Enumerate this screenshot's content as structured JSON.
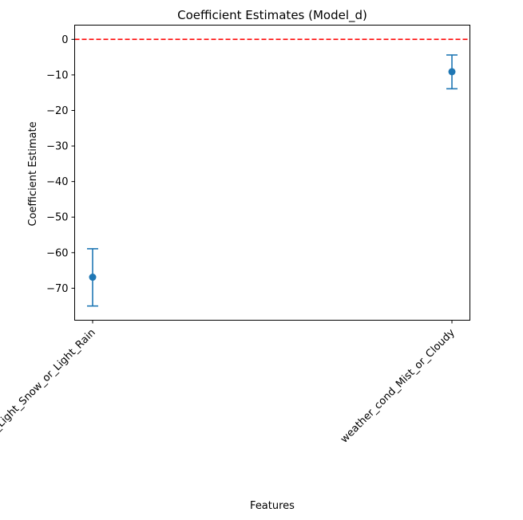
{
  "chart_data": {
    "type": "errorbar",
    "title": "Coefficient Estimates (Model_d)",
    "xlabel": "Features",
    "ylabel": "Coefficient Estimate",
    "categories": [
      "weather_cond_Light_Snow_or_Light_Rain",
      "weather_cond_Mist_or_Cloudy"
    ],
    "values": [
      -66.9,
      -9.1
    ],
    "lower": [
      -75.0,
      -13.9
    ],
    "upper": [
      -58.9,
      -4.4
    ],
    "ylim": [
      -79.0,
      4.0
    ],
    "yticks": [
      0,
      -10,
      -20,
      -30,
      -40,
      -50,
      -60,
      -70
    ],
    "ytick_labels": [
      "0",
      "−10",
      "−20",
      "−30",
      "−40",
      "−50",
      "−60",
      "−70"
    ],
    "reference_line": {
      "y": 0,
      "color": "#ff0000",
      "style": "dashed"
    },
    "colors": {
      "series": "#1f77b4"
    },
    "grid": false,
    "legend": "none"
  }
}
